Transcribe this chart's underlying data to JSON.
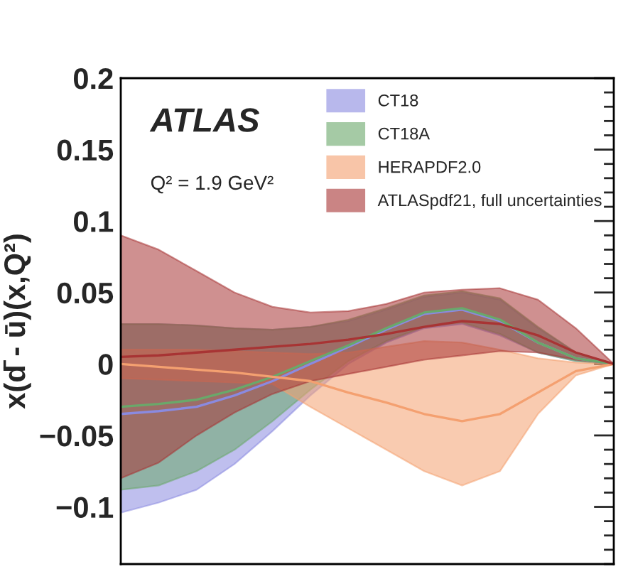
{
  "chart_data": {
    "type": "line",
    "ylabel": "x(d̄ - ū)(x,Q²)",
    "annotations": [
      "ATLAS",
      "Q² = 1.9 GeV²"
    ],
    "categories": [
      null,
      null,
      null,
      null,
      null,
      null,
      null,
      null,
      null,
      null,
      null,
      null,
      null,
      null
    ],
    "ylim": [
      -0.14,
      0.2
    ],
    "yticks": [
      {
        "value": -0.1,
        "label": "−0.1"
      },
      {
        "value": -0.05,
        "label": "−0.05"
      },
      0,
      0.05,
      0.1,
      0.15,
      0.2
    ],
    "legend": "top right",
    "grid": false,
    "marker": "none",
    "line_style": "solid",
    "series": [
      {
        "name": "CT18",
        "color": "#8a8ae0",
        "values": [
          -0.035,
          -0.033,
          -0.03,
          -0.022,
          -0.012,
          0.0,
          0.012,
          0.024,
          0.035,
          0.038,
          0.03,
          0.015,
          0.004,
          0
        ],
        "lower": [
          -0.104,
          -0.097,
          -0.088,
          -0.07,
          -0.047,
          -0.022,
          0.0,
          0.015,
          0.025,
          0.028,
          0.02,
          0.008,
          0.002,
          0
        ],
        "upper": [
          0.028,
          0.028,
          0.027,
          0.025,
          0.024,
          0.026,
          0.03,
          0.038,
          0.047,
          0.05,
          0.045,
          0.025,
          0.008,
          0
        ]
      },
      {
        "name": "CT18A",
        "color": "#6aa86a",
        "values": [
          -0.03,
          -0.028,
          -0.025,
          -0.018,
          -0.009,
          0.002,
          0.013,
          0.025,
          0.036,
          0.039,
          0.031,
          0.015,
          0.004,
          0
        ],
        "lower": [
          -0.088,
          -0.085,
          -0.075,
          -0.06,
          -0.04,
          -0.018,
          0.002,
          0.016,
          0.026,
          0.029,
          0.021,
          0.008,
          0.002,
          0
        ],
        "upper": [
          0.028,
          0.028,
          0.027,
          0.025,
          0.024,
          0.026,
          0.031,
          0.039,
          0.048,
          0.051,
          0.046,
          0.026,
          0.008,
          0
        ]
      },
      {
        "name": "HERAPDF2.0",
        "color": "#f4a070",
        "values": [
          0,
          -0.002,
          -0.004,
          -0.006,
          -0.009,
          -0.012,
          -0.02,
          -0.027,
          -0.035,
          -0.04,
          -0.035,
          -0.02,
          -0.005,
          0
        ],
        "lower": [
          -0.01,
          -0.011,
          -0.012,
          -0.013,
          -0.014,
          -0.03,
          -0.045,
          -0.06,
          -0.075,
          -0.085,
          -0.075,
          -0.035,
          -0.008,
          0
        ],
        "upper": [
          0.01,
          0.01,
          0.01,
          0.009,
          0.008,
          0.007,
          0.008,
          0.012,
          0.016,
          0.015,
          0.01,
          0.004,
          0.001,
          0
        ]
      },
      {
        "name": "ATLASpdf21, full uncertainties",
        "color": "#a83434",
        "values": [
          0.005,
          0.006,
          0.008,
          0.01,
          0.012,
          0.014,
          0.017,
          0.021,
          0.026,
          0.03,
          0.028,
          0.02,
          0.008,
          0
        ],
        "lower": [
          -0.08,
          -0.069,
          -0.05,
          -0.034,
          -0.021,
          -0.012,
          -0.007,
          -0.002,
          0.003,
          0.006,
          0.009,
          0.008,
          0.003,
          0
        ],
        "upper": [
          0.09,
          0.08,
          0.065,
          0.05,
          0.04,
          0.036,
          0.037,
          0.042,
          0.05,
          0.052,
          0.053,
          0.045,
          0.025,
          0
        ]
      }
    ]
  }
}
